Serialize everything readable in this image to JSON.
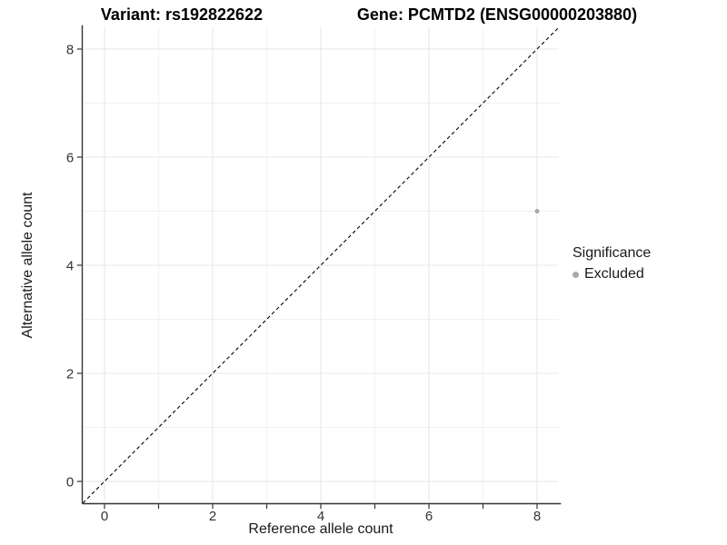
{
  "chart_data": {
    "type": "scatter",
    "title_left": "Variant: rs192822622",
    "title_right": "Gene: PCMTD2 (ENSG00000203880)",
    "xlabel": "Reference allele count",
    "ylabel": "Alternative allele count",
    "xlim": [
      -0.4,
      8.4
    ],
    "ylim": [
      -0.4,
      8.4
    ],
    "x_tick_values": [
      0,
      2,
      4,
      6,
      8
    ],
    "x_tick_labels": [
      "0",
      "2",
      "4",
      "6",
      "8"
    ],
    "x_tick_marks": [
      0,
      1,
      2,
      3,
      4,
      5,
      6,
      7,
      8
    ],
    "y_tick_values": [
      0,
      2,
      4,
      6,
      8
    ],
    "y_tick_labels": [
      "0",
      "2",
      "4",
      "6",
      "8"
    ],
    "y_tick_marks": [
      0,
      2,
      4,
      6,
      8
    ],
    "grid": {
      "major_at": [
        0,
        2,
        4,
        6,
        8
      ],
      "minor_at": [
        1,
        3,
        5,
        7
      ],
      "major_color": "#e7e7e7",
      "minor_color": "#f1f1f1"
    },
    "reference_line": {
      "type": "identity",
      "slope": 1,
      "intercept": 0,
      "style": "dashed",
      "color": "#000000"
    },
    "axis_color": "#333333",
    "series": [
      {
        "name": "Excluded",
        "color": "#a9a9a9",
        "points": [
          [
            8,
            5
          ]
        ]
      }
    ],
    "legend": {
      "title": "Significance",
      "position": "right",
      "entries": [
        {
          "label": "Excluded",
          "color": "#a9a9a9",
          "shape": "circle"
        }
      ]
    }
  }
}
